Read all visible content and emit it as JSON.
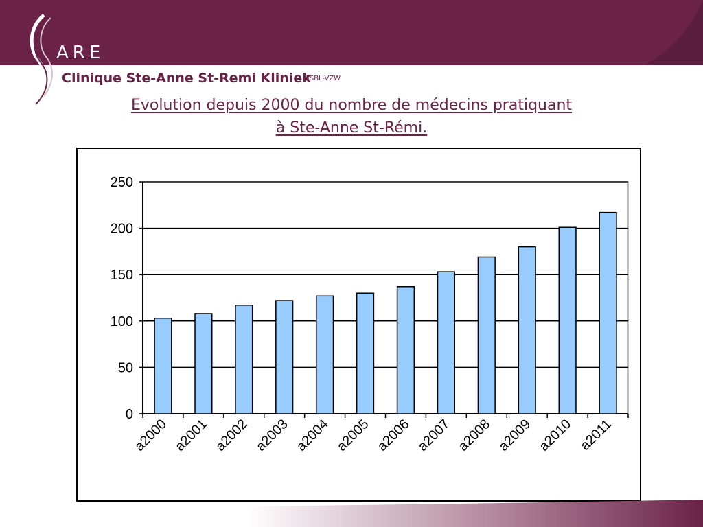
{
  "header": {
    "logo_text": "ARE",
    "clinic_name": "Clinique Ste-Anne St-Remi Kliniek",
    "clinic_suffix": "ASBL-VZW",
    "brand_color": "#6a2247"
  },
  "title_line1": "Evolution depuis 2000 du nombre de médecins pratiquant",
  "title_line2": "à Ste-Anne St-Rémi.",
  "chart_data": {
    "type": "bar",
    "categories": [
      "a2000",
      "a2001",
      "a2002",
      "a2003",
      "a2004",
      "a2005",
      "a2006",
      "a2007",
      "a2008",
      "a2009",
      "a2010",
      "a2011"
    ],
    "values": [
      103,
      108,
      117,
      122,
      127,
      130,
      137,
      153,
      169,
      180,
      201,
      217
    ],
    "ylim": [
      0,
      250
    ],
    "yticks": [
      0,
      50,
      100,
      150,
      200,
      250
    ],
    "grid": true,
    "bar_color": "#99ccff",
    "xlabel": "",
    "ylabel": ""
  }
}
